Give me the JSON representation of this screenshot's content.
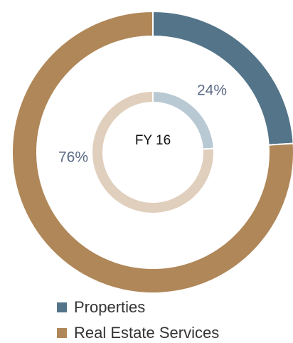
{
  "chart_data": {
    "type": "donut",
    "center_label": "FY 16",
    "categories": [
      "Properties",
      "Real Estate Services"
    ],
    "values": [
      24,
      76
    ],
    "value_labels": [
      "24%",
      "76%"
    ],
    "colors": [
      "#537489",
      "#b08759"
    ],
    "inner_colors": [
      "#b9c9d3",
      "#e0cfbd"
    ]
  }
}
